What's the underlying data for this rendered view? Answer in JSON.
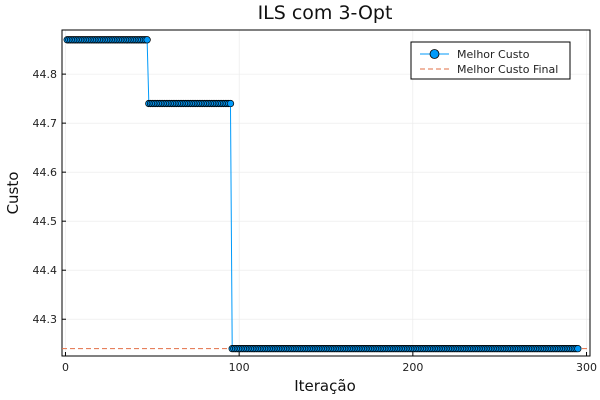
{
  "chart_data": {
    "type": "line",
    "title": "ILS com 3-Opt",
    "xlabel": "Iteração",
    "ylabel": "Custo",
    "xlim": [
      -2,
      302
    ],
    "ylim": [
      44.225,
      44.89
    ],
    "xticks": [
      0,
      100,
      200,
      300
    ],
    "yticks": [
      44.3,
      44.4,
      44.5,
      44.6,
      44.7,
      44.8
    ],
    "xtick_labels": [
      "0",
      "100",
      "200",
      "300"
    ],
    "ytick_labels": [
      "44.3",
      "44.4",
      "44.5",
      "44.6",
      "44.7",
      "44.8"
    ],
    "grid": true,
    "legend_position": "top-right",
    "series": [
      {
        "name": "Melhor Custo",
        "color": "#009AFA",
        "marker": "circle",
        "segments": [
          {
            "x_start": 1,
            "x_end": 47,
            "y": 44.87
          },
          {
            "x_start": 48,
            "x_end": 95,
            "y": 44.74
          },
          {
            "x_start": 96,
            "x_end": 295,
            "y": 44.24
          }
        ]
      },
      {
        "name": "Melhor Custo Final",
        "color": "#E26F46",
        "style": "dashed",
        "y": 44.24
      }
    ]
  }
}
